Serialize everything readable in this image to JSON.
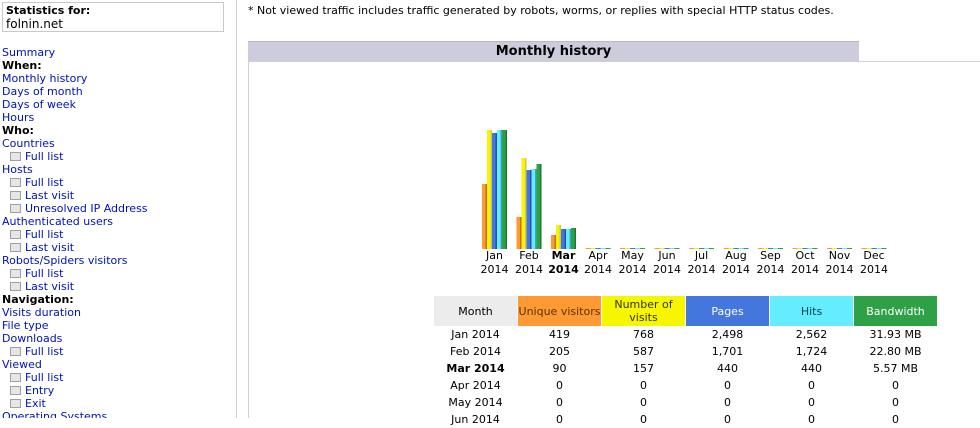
{
  "header": {
    "stats_for_label": "Statistics for:",
    "site": "folnin.net"
  },
  "menu": [
    {
      "kind": "link",
      "label": "Summary"
    },
    {
      "kind": "header",
      "label": "When:"
    },
    {
      "kind": "link",
      "label": "Monthly history"
    },
    {
      "kind": "link",
      "label": "Days of month"
    },
    {
      "kind": "link",
      "label": "Days of week"
    },
    {
      "kind": "link",
      "label": "Hours"
    },
    {
      "kind": "header",
      "label": "Who:"
    },
    {
      "kind": "link",
      "label": "Countries"
    },
    {
      "kind": "sub",
      "label": "Full list"
    },
    {
      "kind": "link",
      "label": "Hosts"
    },
    {
      "kind": "sub",
      "label": "Full list"
    },
    {
      "kind": "sub",
      "label": "Last visit"
    },
    {
      "kind": "sub",
      "label": "Unresolved IP Address"
    },
    {
      "kind": "link",
      "label": "Authenticated users"
    },
    {
      "kind": "sub",
      "label": "Full list"
    },
    {
      "kind": "sub",
      "label": "Last visit"
    },
    {
      "kind": "link",
      "label": "Robots/Spiders visitors"
    },
    {
      "kind": "sub",
      "label": "Full list"
    },
    {
      "kind": "sub",
      "label": "Last visit"
    },
    {
      "kind": "header",
      "label": "Navigation:"
    },
    {
      "kind": "link",
      "label": "Visits duration"
    },
    {
      "kind": "link",
      "label": "File type"
    },
    {
      "kind": "link",
      "label": "Downloads"
    },
    {
      "kind": "sub",
      "label": "Full list"
    },
    {
      "kind": "link",
      "label": "Viewed"
    },
    {
      "kind": "sub",
      "label": "Full list"
    },
    {
      "kind": "sub",
      "label": "Entry"
    },
    {
      "kind": "sub",
      "label": "Exit"
    },
    {
      "kind": "link",
      "label": "Operating Systems"
    }
  ],
  "note": "* Not viewed traffic includes traffic generated by robots, worms, or replies with special HTTP status codes.",
  "section_title": "Monthly history",
  "colors": {
    "unique_visitors": "#ff9933",
    "visits": "#f6f600",
    "pages": "#4477dd",
    "hits": "#66ecff",
    "bandwidth": "#2ea045"
  },
  "chart_data": {
    "type": "bar",
    "categories": [
      {
        "month": "Jan",
        "year": "2014",
        "current": false
      },
      {
        "month": "Feb",
        "year": "2014",
        "current": false
      },
      {
        "month": "Mar",
        "year": "2014",
        "current": true
      },
      {
        "month": "Apr",
        "year": "2014",
        "current": false
      },
      {
        "month": "May",
        "year": "2014",
        "current": false
      },
      {
        "month": "Jun",
        "year": "2014",
        "current": false
      },
      {
        "month": "Jul",
        "year": "2014",
        "current": false
      },
      {
        "month": "Aug",
        "year": "2014",
        "current": false
      },
      {
        "month": "Sep",
        "year": "2014",
        "current": false
      },
      {
        "month": "Oct",
        "year": "2014",
        "current": false
      },
      {
        "month": "Nov",
        "year": "2014",
        "current": false
      },
      {
        "month": "Dec",
        "year": "2014",
        "current": false
      }
    ],
    "series": [
      {
        "key": "unique_visitors",
        "values": [
          419,
          205,
          90,
          0,
          0,
          0,
          0,
          0,
          0,
          0,
          0,
          0
        ]
      },
      {
        "key": "visits",
        "values": [
          768,
          587,
          157,
          0,
          0,
          0,
          0,
          0,
          0,
          0,
          0,
          0
        ]
      },
      {
        "key": "pages",
        "values": [
          2498,
          1701,
          440,
          0,
          0,
          0,
          0,
          0,
          0,
          0,
          0,
          0
        ]
      },
      {
        "key": "hits",
        "values": [
          2562,
          1724,
          440,
          0,
          0,
          0,
          0,
          0,
          0,
          0,
          0,
          0
        ]
      },
      {
        "key": "bandwidth_mb",
        "values": [
          31.93,
          22.8,
          5.57,
          0,
          0,
          0,
          0,
          0,
          0,
          0,
          0,
          0
        ]
      }
    ]
  },
  "table": {
    "headers": [
      "Month",
      "Unique visitors",
      "Number of visits",
      "Pages",
      "Hits",
      "Bandwidth"
    ],
    "rows": [
      {
        "month": "Jan 2014",
        "uv": "419",
        "v": "768",
        "p": "2,498",
        "h": "2,562",
        "b": "31.93 MB",
        "current": false
      },
      {
        "month": "Feb 2014",
        "uv": "205",
        "v": "587",
        "p": "1,701",
        "h": "1,724",
        "b": "22.80 MB",
        "current": false
      },
      {
        "month": "Mar 2014",
        "uv": "90",
        "v": "157",
        "p": "440",
        "h": "440",
        "b": "5.57 MB",
        "current": true
      },
      {
        "month": "Apr 2014",
        "uv": "0",
        "v": "0",
        "p": "0",
        "h": "0",
        "b": "0",
        "current": false
      },
      {
        "month": "May 2014",
        "uv": "0",
        "v": "0",
        "p": "0",
        "h": "0",
        "b": "0",
        "current": false
      },
      {
        "month": "Jun 2014",
        "uv": "0",
        "v": "0",
        "p": "0",
        "h": "0",
        "b": "0",
        "current": false
      }
    ]
  }
}
